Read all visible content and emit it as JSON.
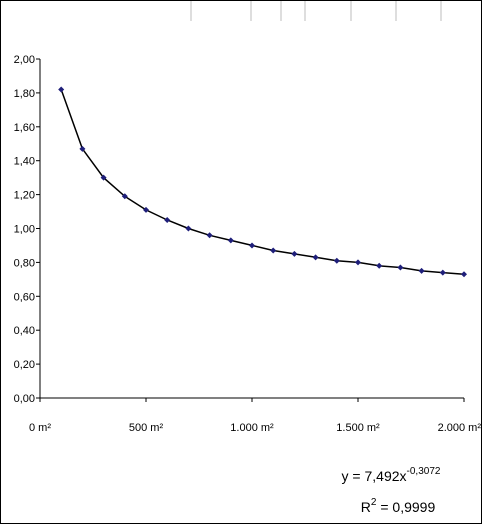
{
  "chart_data": {
    "type": "scatter",
    "title": "",
    "xlabel": "",
    "ylabel": "",
    "x_unit": "m²",
    "xlim": [
      0,
      2000
    ],
    "ylim": [
      0,
      2
    ],
    "grid": false,
    "x_ticks": [
      {
        "value": 0,
        "label": "0 m²"
      },
      {
        "value": 500,
        "label": "500 m²"
      },
      {
        "value": 1000,
        "label": "1.000 m²"
      },
      {
        "value": 1500,
        "label": "1.500 m²"
      },
      {
        "value": 2000,
        "label": "2.000 m²"
      }
    ],
    "y_ticks": [
      {
        "value": 0,
        "label": "0,00"
      },
      {
        "value": 0.2,
        "label": "0,20"
      },
      {
        "value": 0.4,
        "label": "0,40"
      },
      {
        "value": 0.6,
        "label": "0,60"
      },
      {
        "value": 0.8,
        "label": "0,80"
      },
      {
        "value": 1.0,
        "label": "1,00"
      },
      {
        "value": 1.2,
        "label": "1,20"
      },
      {
        "value": 1.4,
        "label": "1,40"
      },
      {
        "value": 1.6,
        "label": "1,60"
      },
      {
        "value": 1.8,
        "label": "1,80"
      },
      {
        "value": 2.0,
        "label": "2,00"
      }
    ],
    "series": [
      {
        "x": [
          100,
          200,
          300,
          400,
          500,
          600,
          700,
          800,
          900,
          1000,
          1100,
          1200,
          1300,
          1400,
          1500,
          1600,
          1700,
          1800,
          1900,
          2000
        ],
        "y": [
          1.82,
          1.47,
          1.3,
          1.19,
          1.11,
          1.05,
          1.0,
          0.96,
          0.93,
          0.9,
          0.87,
          0.85,
          0.83,
          0.81,
          0.8,
          0.78,
          0.77,
          0.75,
          0.74,
          0.73
        ],
        "marker_color": "#1f1f7a",
        "line_color": "#000000"
      }
    ],
    "trendline": {
      "type": "power",
      "a": 7.492,
      "b": -0.3072,
      "equation_prefix": "y = 7,492x",
      "equation_exponent": "-0,3072",
      "r2_prefix": "R",
      "r2_exponent": "2",
      "r2_suffix": " = 0,9999"
    }
  }
}
